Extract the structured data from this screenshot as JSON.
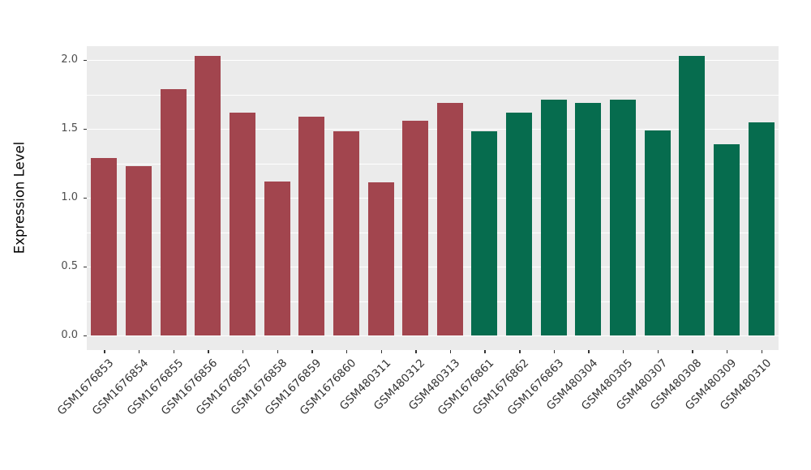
{
  "chart_data": {
    "type": "bar",
    "title": "",
    "xlabel": "",
    "ylabel": "Expression Level",
    "ylim": [
      0,
      2.1
    ],
    "yticks": [
      0.0,
      0.5,
      1.0,
      1.5,
      2.0
    ],
    "ytick_labels": [
      "0.0",
      "0.5",
      "1.0",
      "1.5",
      "2.0"
    ],
    "yticks_minor": [
      0.25,
      0.75,
      1.25,
      1.75
    ],
    "grid": "on",
    "legend": "none",
    "panel_background": "#EBEBEB",
    "gridline_color": "#FFFFFF",
    "categories": [
      "GSM1676853",
      "GSM1676854",
      "GSM1676855",
      "GSM1676856",
      "GSM1676857",
      "GSM1676858",
      "GSM1676859",
      "GSM1676860",
      "GSM480311",
      "GSM480312",
      "GSM480313",
      "GSM1676861",
      "GSM1676862",
      "GSM1676863",
      "GSM480304",
      "GSM480305",
      "GSM480307",
      "GSM480308",
      "GSM480309",
      "GSM480310"
    ],
    "values": [
      1.29,
      1.23,
      1.79,
      2.03,
      1.62,
      1.12,
      1.59,
      1.48,
      1.11,
      1.56,
      1.69,
      1.48,
      1.62,
      1.71,
      1.69,
      1.71,
      1.49,
      2.03,
      1.39,
      1.55
    ],
    "groups": [
      "A",
      "A",
      "A",
      "A",
      "A",
      "A",
      "A",
      "A",
      "A",
      "A",
      "A",
      "B",
      "B",
      "B",
      "B",
      "B",
      "B",
      "B",
      "B",
      "B"
    ],
    "group_colors": {
      "A": "#A2454E",
      "B": "#066C4E"
    }
  }
}
